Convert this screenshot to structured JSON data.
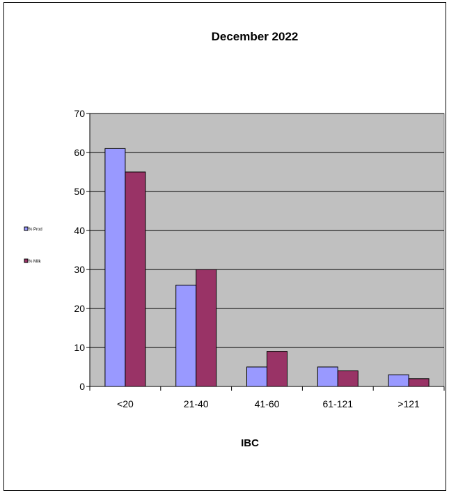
{
  "chart_data": {
    "type": "bar",
    "title": "December 2022",
    "xlabel": "IBC",
    "ylabel": "",
    "categories": [
      "<20",
      "21-40",
      "41-60",
      "61-121",
      ">121"
    ],
    "series": [
      {
        "name": "% Prod",
        "values": [
          61,
          26,
          5,
          5,
          3
        ],
        "color": "#9999ff"
      },
      {
        "name": "% Milk",
        "values": [
          55,
          30,
          9,
          4,
          2
        ],
        "color": "#993366"
      }
    ],
    "ylim": [
      0,
      70
    ],
    "yticks": [
      0,
      10,
      20,
      30,
      40,
      50,
      60,
      70
    ],
    "grid": true,
    "legend_position": "left",
    "plot_background": "#c0c0c0"
  }
}
